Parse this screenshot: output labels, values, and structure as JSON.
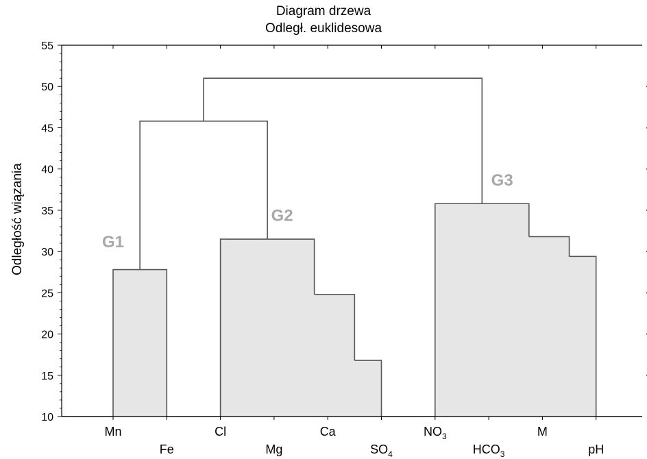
{
  "chart_data": {
    "type": "dendrogram",
    "title": "Diagram drzewa",
    "subtitle": "Odległ. euklidesowa",
    "ylabel": "Odległość wiązania",
    "ylim": [
      10,
      55
    ],
    "yticks": [
      "10",
      "15",
      "20",
      "25",
      "30",
      "35",
      "40",
      "45",
      "50",
      "55"
    ],
    "leaves": [
      {
        "name": "Mn",
        "sub": "",
        "row": 0
      },
      {
        "name": "Fe",
        "sub": "",
        "row": 1
      },
      {
        "name": "Cl",
        "sub": "",
        "row": 0
      },
      {
        "name": "Mg",
        "sub": "",
        "row": 1
      },
      {
        "name": "Ca",
        "sub": "",
        "row": 0
      },
      {
        "name": "SO",
        "sub": "4",
        "row": 1
      },
      {
        "name": "NO",
        "sub": "3",
        "row": 0
      },
      {
        "name": "HCO",
        "sub": "3",
        "row": 1
      },
      {
        "name": "M",
        "sub": "",
        "row": 0
      },
      {
        "name": "pH",
        "sub": "",
        "row": 1
      }
    ],
    "merges": [
      {
        "left": 4,
        "right": 5,
        "height": 16.8,
        "leftBase": 10,
        "rightBase": 10,
        "filled": true
      },
      {
        "left": 3,
        "right": 4.5,
        "height": 24.8,
        "leftBase": 10,
        "rightBase": 16.8,
        "filled": true
      },
      {
        "left": 0,
        "right": 1,
        "height": 27.8,
        "leftBase": 10,
        "rightBase": 10,
        "filled": true
      },
      {
        "left": 8,
        "right": 9,
        "height": 29.4,
        "leftBase": 10,
        "rightBase": 10,
        "filled": true
      },
      {
        "left": 2,
        "right": 3.75,
        "height": 31.5,
        "leftBase": 10,
        "rightBase": 24.8,
        "filled": true
      },
      {
        "left": 7,
        "right": 8.5,
        "height": 31.8,
        "leftBase": 10,
        "rightBase": 29.4,
        "filled": true
      },
      {
        "left": 6,
        "right": 7.75,
        "height": 35.8,
        "leftBase": 10,
        "rightBase": 31.8,
        "filled": true
      },
      {
        "left": 0.5,
        "right": 2.875,
        "height": 45.8,
        "leftBase": 27.8,
        "rightBase": 31.5,
        "filled": false
      },
      {
        "left": 1.6875,
        "right": 6.875,
        "height": 51.0,
        "leftBase": 45.8,
        "rightBase": 35.8,
        "filled": false
      }
    ],
    "group_labels": [
      {
        "text": "G1",
        "x": 0.0,
        "y": 30.5
      },
      {
        "text": "G2",
        "x": 3.15,
        "y": 33.7
      },
      {
        "text": "G3",
        "x": 7.25,
        "y": 38.0
      }
    ],
    "grid": false
  }
}
